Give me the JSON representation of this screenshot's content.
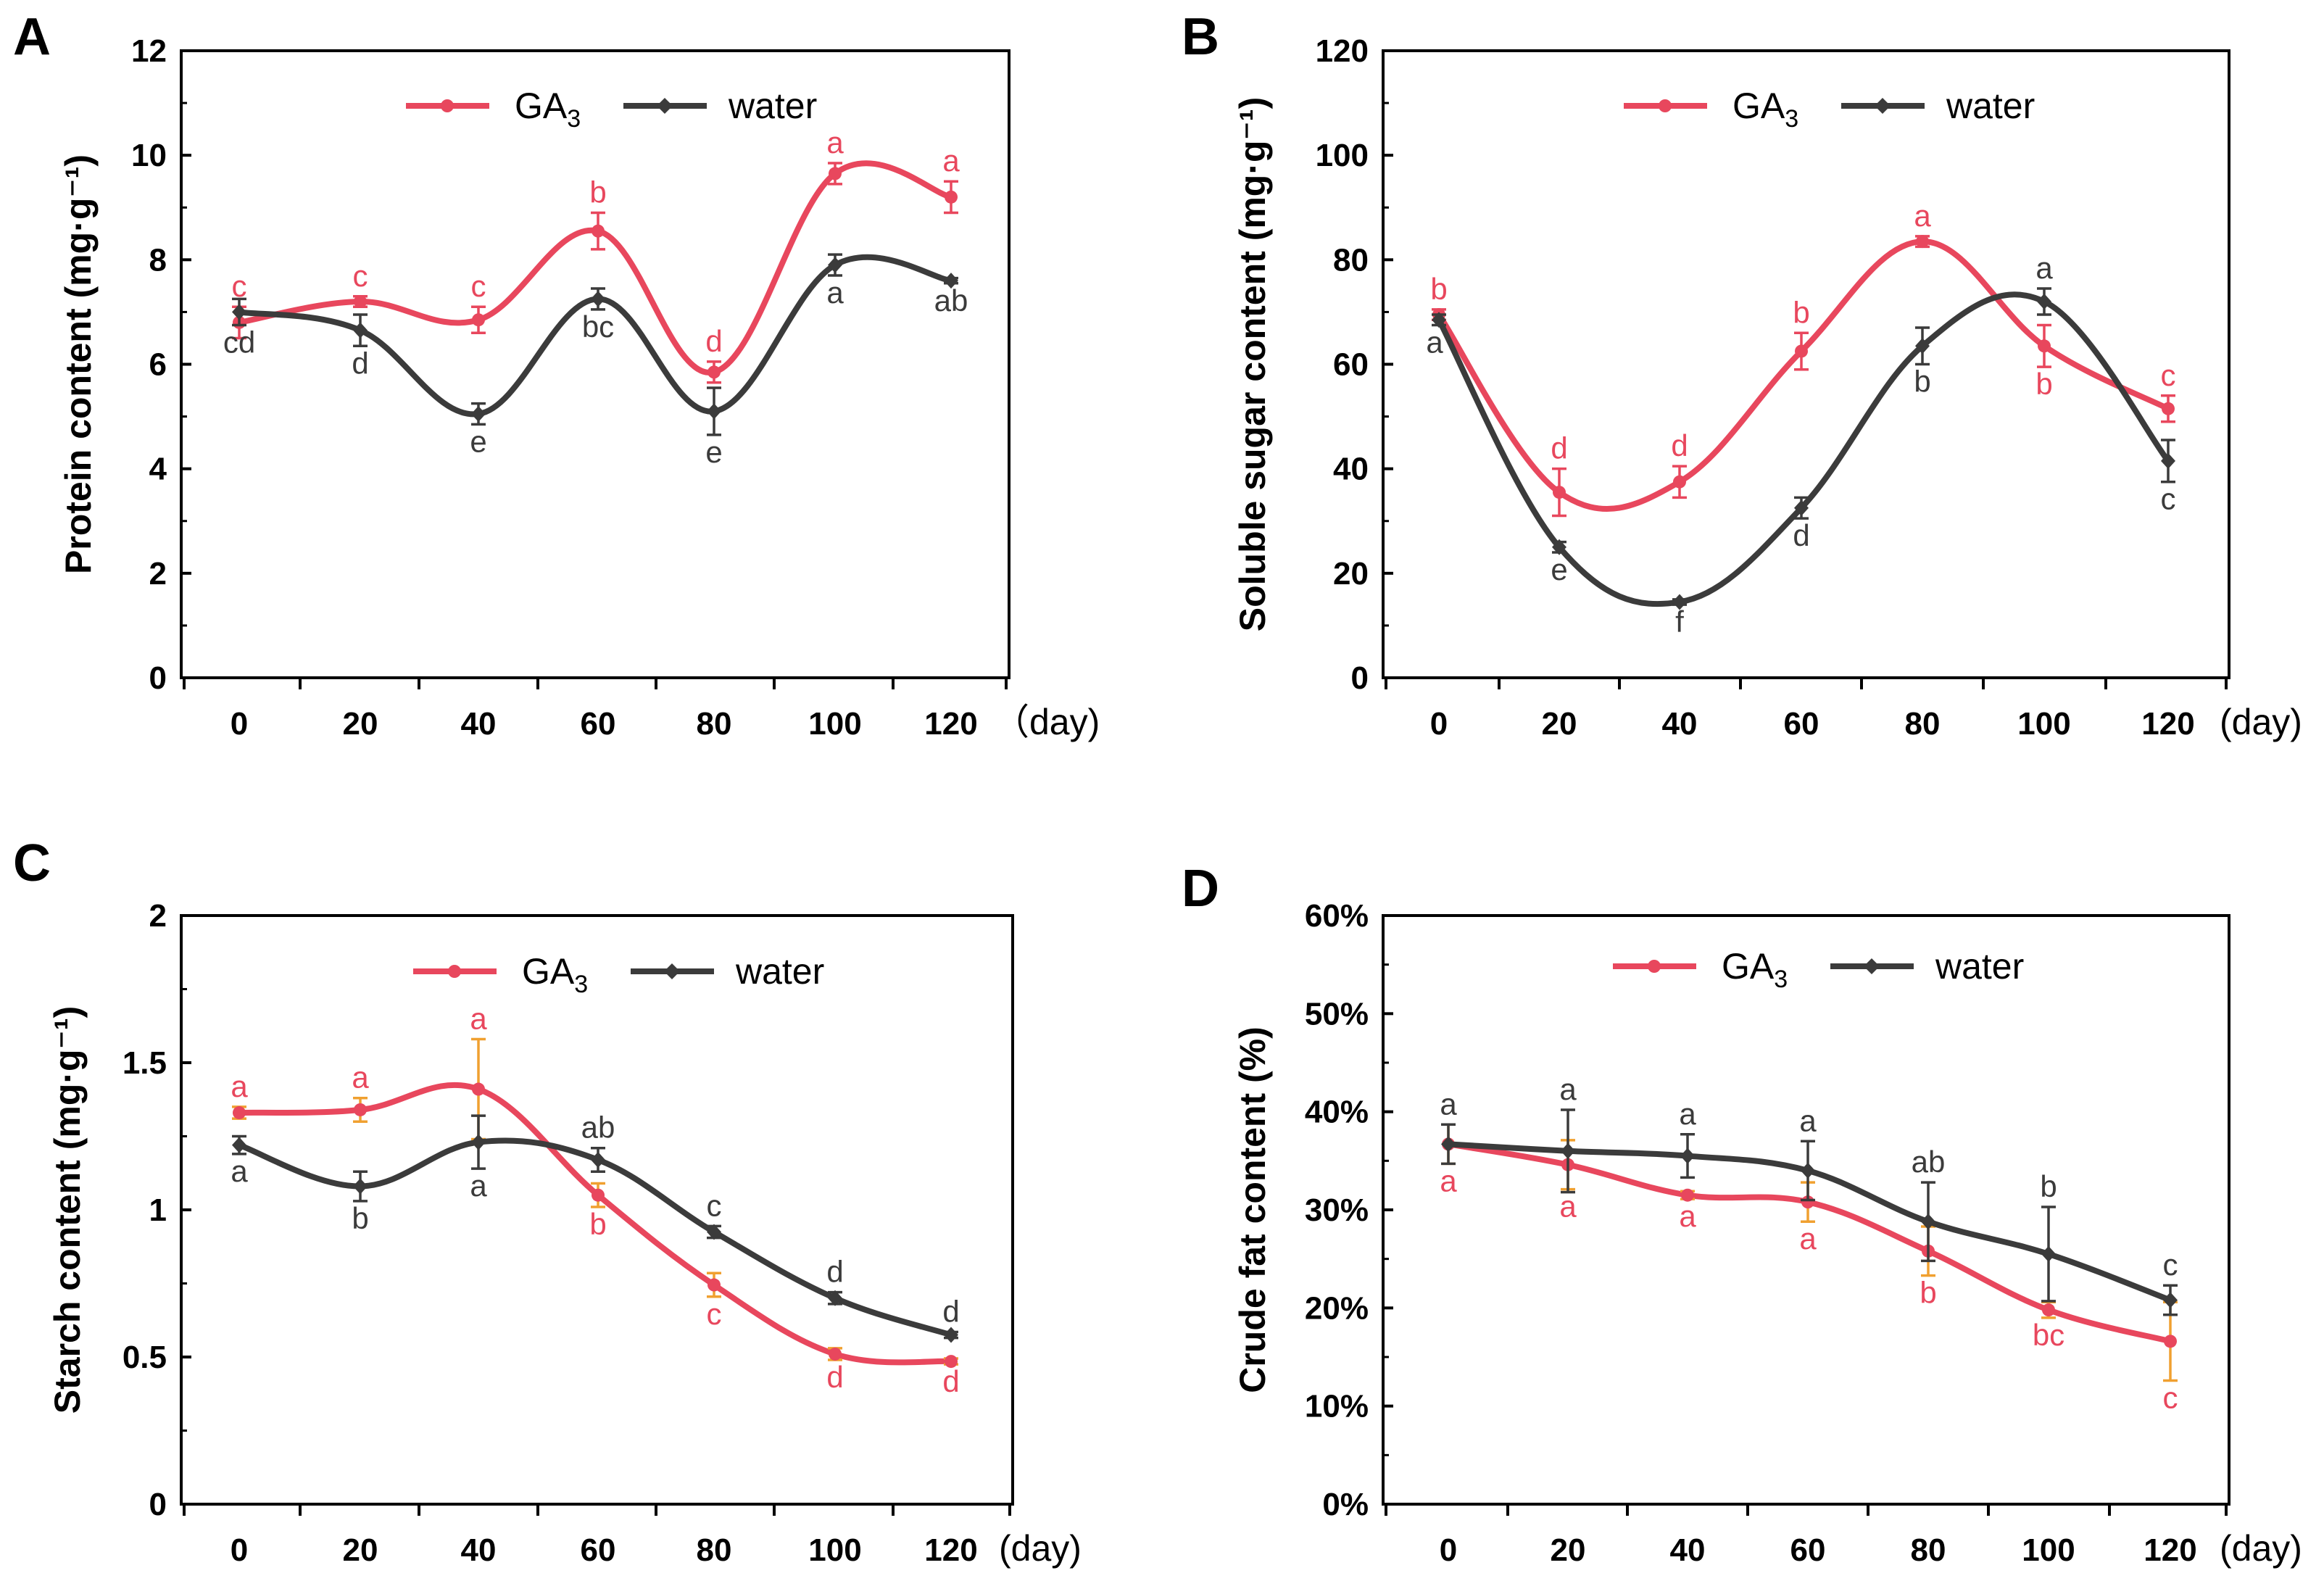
{
  "colors": {
    "ga3": "#e8475d",
    "water": "#3b3b3b",
    "err_ga3_c": "#f0a030",
    "err_ga3_d": "#f0a030"
  },
  "chart_data": [
    {
      "type": "line",
      "panel": "A",
      "xlabel": "",
      "ylabel": "Protein content (mg·g⁻¹)",
      "x_unit": "（day)",
      "categories": [
        "0",
        "20",
        "40",
        "60",
        "80",
        "100",
        "120"
      ],
      "x": [
        0,
        20,
        40,
        60,
        80,
        100,
        120
      ],
      "ylim": [
        0,
        12
      ],
      "yticks": [
        0,
        2,
        4,
        6,
        8,
        10,
        12
      ],
      "ytick_labels": [
        "0",
        "2",
        "4",
        "6",
        "8",
        "10",
        "12"
      ],
      "legend": [
        "GA3",
        "water"
      ],
      "series": [
        {
          "name": "GA3",
          "key": "ga3",
          "values": [
            6.8,
            7.2,
            6.85,
            8.55,
            5.85,
            9.65,
            9.2
          ],
          "errors": [
            0.3,
            0.1,
            0.25,
            0.35,
            0.2,
            0.2,
            0.3
          ],
          "letters": [
            "c",
            "c",
            "c",
            "b",
            "d",
            "a",
            "a"
          ],
          "letter_pos": [
            "above",
            "above",
            "above",
            "above",
            "above",
            "above",
            "above"
          ]
        },
        {
          "name": "water",
          "key": "water",
          "values": [
            7.0,
            6.65,
            5.05,
            7.25,
            5.1,
            7.9,
            7.6
          ],
          "errors": [
            0.25,
            0.3,
            0.2,
            0.2,
            0.45,
            0.2,
            0.05
          ],
          "letters": [
            "cd",
            "d",
            "e",
            "bc",
            "e",
            "a",
            "ab"
          ],
          "letter_pos": [
            "below",
            "below",
            "below",
            "below",
            "below",
            "below",
            "below"
          ]
        }
      ]
    },
    {
      "type": "line",
      "panel": "B",
      "xlabel": "",
      "ylabel": "Soluble sugar content (mg·g⁻¹)",
      "x_unit": "(day)",
      "categories": [
        "0",
        "20",
        "40",
        "60",
        "80",
        "100",
        "120"
      ],
      "x": [
        0,
        20,
        40,
        60,
        80,
        100,
        120
      ],
      "ylim": [
        0,
        120
      ],
      "yticks": [
        0,
        20,
        40,
        60,
        80,
        100,
        120
      ],
      "ytick_labels": [
        "0",
        "20",
        "40",
        "60",
        "80",
        "100",
        "120"
      ],
      "legend": [
        "GA3",
        "water"
      ],
      "series": [
        {
          "name": "GA3",
          "key": "ga3",
          "values": [
            69.5,
            35.5,
            37.5,
            62.5,
            83.5,
            63.5,
            51.5
          ],
          "errors": [
            1.0,
            4.5,
            3.0,
            3.5,
            1.0,
            4.0,
            2.5
          ],
          "letters": [
            "b",
            "d",
            "d",
            "b",
            "a",
            "b",
            "c"
          ],
          "letter_pos": [
            "above",
            "above",
            "above",
            "above",
            "above",
            "below",
            "above"
          ]
        },
        {
          "name": "water",
          "key": "water",
          "values": [
            68.5,
            25.0,
            14.5,
            32.5,
            63.5,
            72.0,
            41.5
          ],
          "errors": [
            1.0,
            1.0,
            0.5,
            2.0,
            3.5,
            2.5,
            4.0
          ],
          "letters": [
            "a",
            "e",
            "f",
            "d",
            "b",
            "a",
            "c"
          ],
          "letter_pos": [
            "belowleft",
            "below",
            "below",
            "below",
            "below",
            "above",
            "below"
          ]
        }
      ]
    },
    {
      "type": "line",
      "panel": "C",
      "xlabel": "",
      "ylabel": "Starch content (mg·g⁻¹)",
      "x_unit": "(day)",
      "categories": [
        "0",
        "20",
        "40",
        "60",
        "80",
        "100",
        "120"
      ],
      "x": [
        0,
        20,
        40,
        60,
        80,
        100,
        120
      ],
      "ylim": [
        0,
        2
      ],
      "yticks": [
        0,
        0.5,
        1,
        1.5,
        2
      ],
      "ytick_labels": [
        "0",
        "0.5",
        "1",
        "1.5",
        "2"
      ],
      "legend": [
        "GA3",
        "water"
      ],
      "series": [
        {
          "name": "GA3",
          "key": "ga3",
          "values": [
            1.33,
            1.34,
            1.41,
            1.05,
            0.745,
            0.51,
            0.485
          ],
          "errors": [
            0.02,
            0.04,
            0.17,
            0.04,
            0.04,
            0.02,
            0.01
          ],
          "letters": [
            "a",
            "a",
            "a",
            "b",
            "c",
            "d",
            "d"
          ],
          "letter_pos": [
            "above",
            "above",
            "above",
            "below",
            "below",
            "below",
            "below"
          ]
        },
        {
          "name": "water",
          "key": "water",
          "values": [
            1.22,
            1.08,
            1.23,
            1.17,
            0.925,
            0.7,
            0.575
          ],
          "errors": [
            0.03,
            0.05,
            0.09,
            0.04,
            0.02,
            0.02,
            0.01
          ],
          "letters": [
            "a",
            "b",
            "a",
            "ab",
            "c",
            "d",
            "d"
          ],
          "letter_pos": [
            "below",
            "below",
            "below",
            "above",
            "above",
            "above",
            "above"
          ]
        }
      ]
    },
    {
      "type": "line",
      "panel": "D",
      "xlabel": "",
      "ylabel": "Crude fat content (%)",
      "x_unit": "(day)",
      "categories": [
        "0",
        "20",
        "40",
        "60",
        "80",
        "100",
        "120"
      ],
      "x": [
        0,
        20,
        40,
        60,
        80,
        100,
        120
      ],
      "ylim": [
        0,
        60
      ],
      "yticks": [
        0,
        10,
        20,
        30,
        40,
        50,
        60
      ],
      "ytick_labels": [
        "0%",
        "10%",
        "20%",
        "30%",
        "40%",
        "50%",
        "60%"
      ],
      "legend": [
        "GA3",
        "water"
      ],
      "series": [
        {
          "name": "GA3",
          "key": "ga3",
          "values": [
            36.7,
            34.6,
            31.5,
            30.8,
            25.8,
            19.8,
            16.6
          ],
          "errors": [
            2.0,
            2.5,
            0.4,
            2.0,
            2.5,
            0.8,
            4.0
          ],
          "letters": [
            "a",
            "a",
            "a",
            "a",
            "b",
            "bc",
            "c"
          ],
          "letter_pos": [
            "below",
            "below",
            "below",
            "below",
            "below",
            "below",
            "below"
          ]
        },
        {
          "name": "water",
          "key": "water",
          "values": [
            36.7,
            36.0,
            35.5,
            34.0,
            28.8,
            25.5,
            20.8
          ],
          "errors": [
            2.0,
            4.2,
            2.2,
            3.0,
            4.0,
            4.8,
            1.5
          ],
          "letters": [
            "a",
            "a",
            "a",
            "a",
            "ab",
            "b",
            "c"
          ],
          "letter_pos": [
            "above",
            "above",
            "above",
            "above",
            "above",
            "above",
            "above"
          ]
        }
      ]
    }
  ]
}
